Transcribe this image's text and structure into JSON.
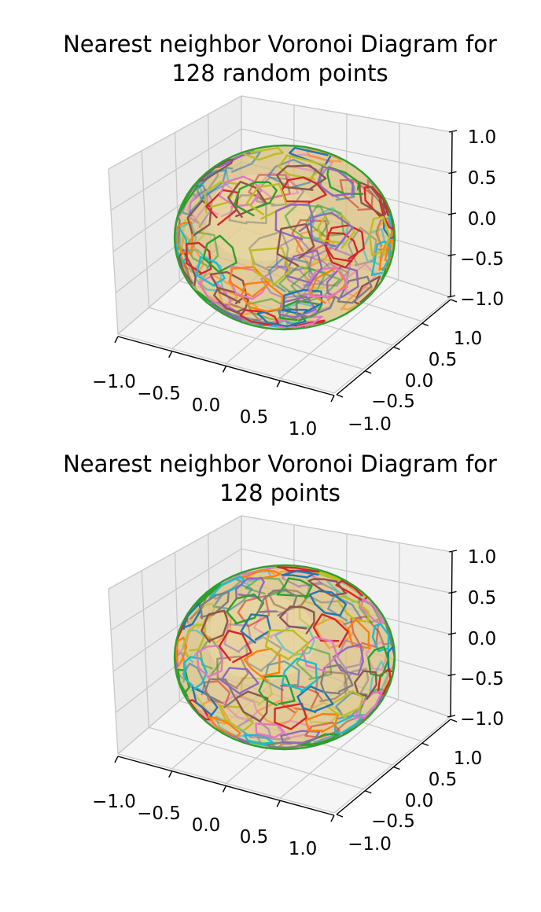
{
  "chart_data": [
    {
      "type": "3d-voronoi-sphere",
      "title_lines": [
        "Nearest neighbor Voronoi Diagram for",
        "128 random points"
      ],
      "point_count": 128,
      "point_distribution": "random",
      "xlim": [
        -1.0,
        1.0
      ],
      "ylim": [
        -1.0,
        1.0
      ],
      "zlim": [
        -1.0,
        1.0
      ],
      "x_ticks": [
        "−1.0",
        "−0.5",
        "0.0",
        "0.5",
        "1.0"
      ],
      "y_ticks": [
        "−1.0",
        "−0.5",
        "0.0",
        "0.5",
        "1.0"
      ],
      "z_ticks": [
        "−1.0",
        "−0.5",
        "0.0",
        "0.5",
        "1.0"
      ],
      "grid": true,
      "sphere_color": "#d9bd7c"
    },
    {
      "type": "3d-voronoi-sphere",
      "title_lines": [
        "Nearest neighbor Voronoi Diagram for",
        "128 points"
      ],
      "point_count": 128,
      "point_distribution": "uniform",
      "xlim": [
        -1.0,
        1.0
      ],
      "ylim": [
        -1.0,
        1.0
      ],
      "zlim": [
        -1.0,
        1.0
      ],
      "x_ticks": [
        "−1.0",
        "−0.5",
        "0.0",
        "0.5",
        "1.0"
      ],
      "y_ticks": [
        "−1.0",
        "−0.5",
        "0.0",
        "0.5",
        "1.0"
      ],
      "z_ticks": [
        "−1.0",
        "−0.5",
        "0.0",
        "0.5",
        "1.0"
      ],
      "grid": true,
      "sphere_color": "#d9bd7c"
    }
  ],
  "edge_colors": [
    "#1f77b4",
    "#ff7f0e",
    "#2ca02c",
    "#d62728",
    "#9467bd",
    "#8c564b",
    "#e377c2",
    "#7f7f7f",
    "#bcbd22",
    "#17becf"
  ]
}
